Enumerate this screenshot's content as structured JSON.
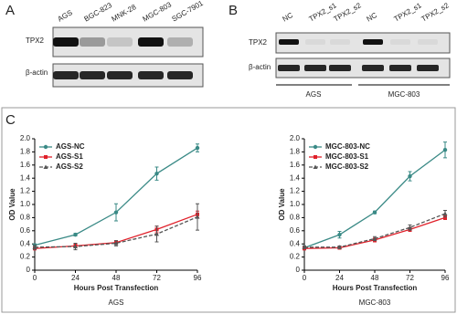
{
  "panels": {
    "a": {
      "letter": "A",
      "lanes": [
        "AGS",
        "BGC-823",
        "MNK-28",
        "MGC-803",
        "SGC-7901"
      ],
      "rows": [
        "TPX2",
        "β-actin"
      ]
    },
    "b": {
      "letter": "B",
      "lanes": [
        "NC",
        "TPX2_s1",
        "TPX2_s2",
        "NC",
        "TPX2_s1",
        "TPX2_s2"
      ],
      "rows": [
        "TPX2",
        "β-actin"
      ],
      "groups": [
        "AGS",
        "MGC-803"
      ]
    },
    "c": {
      "letter": "C"
    }
  },
  "chart_data": [
    {
      "type": "line",
      "caption": "AGS",
      "x_label": "Hours Post Transfection",
      "y_label": "OD Value",
      "x": [
        0,
        24,
        48,
        72,
        96
      ],
      "xlim": [
        0,
        96
      ],
      "xticks": [
        0,
        24,
        48,
        72,
        96
      ],
      "ylim": [
        0,
        2
      ],
      "yticks": [
        0,
        0.2,
        0.4,
        0.6,
        0.8,
        {
          "value": 1,
          "label": "1.0"
        },
        1.2,
        1.4,
        1.6,
        1.8,
        {
          "value": 2,
          "label": "2.0"
        }
      ],
      "legend": "upper left",
      "series": [
        {
          "name": "AGS-NC",
          "color": "#3a8a86",
          "marker": "circle",
          "style": "solid",
          "values": [
            0.38,
            0.54,
            0.88,
            1.47,
            1.86
          ],
          "errors": [
            0.02,
            0.02,
            0.13,
            0.1,
            0.06
          ]
        },
        {
          "name": "AGS-S1",
          "color": "#e0202a",
          "marker": "square",
          "style": "solid",
          "values": [
            0.33,
            0.37,
            0.42,
            0.62,
            0.85
          ],
          "errors": [
            0.02,
            0.03,
            0.03,
            0.05,
            0.05
          ]
        },
        {
          "name": "AGS-S2",
          "color": "#555555",
          "marker": "triangle",
          "style": "dashed",
          "values": [
            0.35,
            0.36,
            0.41,
            0.55,
            0.81
          ],
          "errors": [
            0.03,
            0.05,
            0.04,
            0.12,
            0.2
          ]
        }
      ]
    },
    {
      "type": "line",
      "caption": "MGC-803",
      "x_label": "Hours Post Transfection",
      "y_label": "OD Value",
      "x": [
        0,
        24,
        48,
        72,
        96
      ],
      "xlim": [
        0,
        96
      ],
      "xticks": [
        0,
        24,
        48,
        72,
        96
      ],
      "ylim": [
        0,
        2
      ],
      "yticks": [
        0,
        0.2,
        0.4,
        0.6,
        0.8,
        {
          "value": 1,
          "label": "1.0"
        },
        1.2,
        1.4,
        1.6,
        1.8,
        {
          "value": 2,
          "label": "2.0"
        }
      ],
      "legend": "upper left",
      "series": [
        {
          "name": "MGC-803-NC",
          "color": "#3a8a86",
          "marker": "circle",
          "style": "solid",
          "values": [
            0.34,
            0.54,
            0.88,
            1.43,
            1.83
          ],
          "errors": [
            0.03,
            0.05,
            0.02,
            0.07,
            0.12
          ]
        },
        {
          "name": "MGC-803-S1",
          "color": "#e0202a",
          "marker": "square",
          "style": "solid",
          "values": [
            0.33,
            0.34,
            0.46,
            0.62,
            0.8
          ],
          "errors": [
            0.02,
            0.02,
            0.03,
            0.03,
            0.03
          ]
        },
        {
          "name": "MGC-803-S2",
          "color": "#555555",
          "marker": "triangle",
          "style": "dashed",
          "values": [
            0.35,
            0.35,
            0.48,
            0.65,
            0.86
          ],
          "errors": [
            0.02,
            0.02,
            0.03,
            0.04,
            0.05
          ]
        }
      ]
    }
  ]
}
